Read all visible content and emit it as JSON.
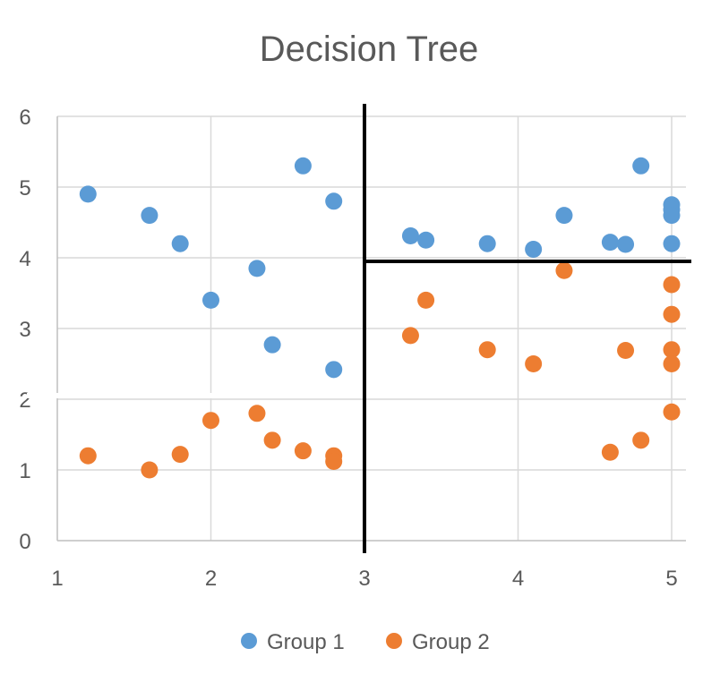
{
  "colors": {
    "group1": "#5b9bd5",
    "group2": "#ed7d31",
    "text": "#595959",
    "grid": "#d9d9d9",
    "split": "#000000"
  },
  "chart_data": {
    "type": "scatter",
    "title": "Decision Tree",
    "xlabel": "",
    "ylabel": "",
    "xlim": [
      1,
      5
    ],
    "ylim": [
      0,
      6
    ],
    "xticks": [
      "1",
      "2",
      "3",
      "4",
      "5"
    ],
    "yticks": [
      "0",
      "1",
      "2",
      "3",
      "4",
      "5",
      "6"
    ],
    "grid": true,
    "legend_position": "bottom",
    "series": [
      {
        "name": "Group 1",
        "color": "#5b9bd5",
        "points": [
          [
            1.2,
            4.9
          ],
          [
            1.6,
            4.6
          ],
          [
            1.8,
            4.2
          ],
          [
            2.0,
            3.4
          ],
          [
            2.3,
            3.85
          ],
          [
            2.4,
            2.77
          ],
          [
            2.6,
            5.3
          ],
          [
            2.8,
            4.8
          ],
          [
            2.8,
            2.42
          ],
          [
            3.3,
            4.31
          ],
          [
            3.4,
            4.25
          ],
          [
            3.8,
            4.2
          ],
          [
            4.1,
            4.12
          ],
          [
            4.3,
            4.6
          ],
          [
            4.6,
            4.22
          ],
          [
            4.7,
            4.19
          ],
          [
            4.8,
            5.3
          ],
          [
            5.0,
            4.75
          ],
          [
            5.0,
            4.68
          ],
          [
            5.0,
            4.6
          ],
          [
            5.0,
            4.2
          ]
        ]
      },
      {
        "name": "Group 2",
        "color": "#ed7d31",
        "points": [
          [
            1.2,
            1.2
          ],
          [
            1.6,
            1.0
          ],
          [
            1.8,
            1.22
          ],
          [
            2.0,
            1.7
          ],
          [
            2.3,
            1.8
          ],
          [
            2.4,
            1.42
          ],
          [
            2.6,
            1.27
          ],
          [
            2.8,
            1.2
          ],
          [
            2.8,
            1.12
          ],
          [
            3.3,
            2.9
          ],
          [
            3.4,
            3.4
          ],
          [
            3.8,
            2.7
          ],
          [
            4.1,
            2.5
          ],
          [
            4.3,
            3.82
          ],
          [
            4.6,
            1.25
          ],
          [
            4.7,
            2.69
          ],
          [
            4.8,
            1.42
          ],
          [
            5.0,
            3.62
          ],
          [
            5.0,
            3.2
          ],
          [
            5.0,
            2.7
          ],
          [
            5.0,
            2.5
          ],
          [
            5.0,
            1.82
          ]
        ]
      }
    ],
    "split_lines": [
      {
        "orientation": "vertical",
        "x": 3,
        "y_from": 0,
        "y_to": 6
      },
      {
        "orientation": "horizontal",
        "y": 3.95,
        "x_from": 3,
        "x_to": 5
      }
    ]
  }
}
